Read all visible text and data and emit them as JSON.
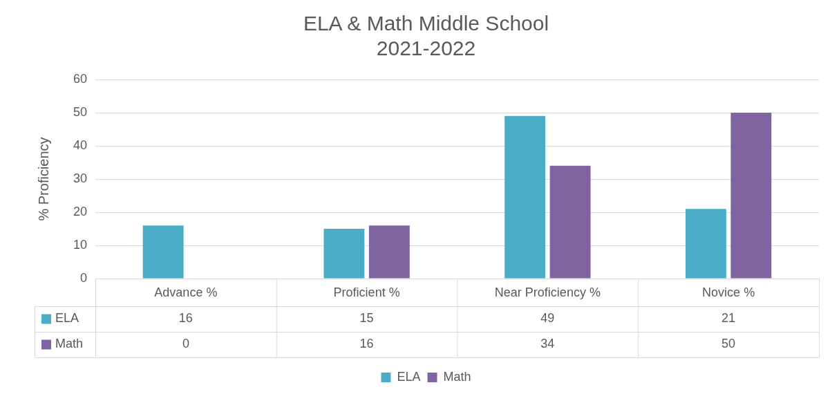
{
  "chart_data": {
    "type": "bar",
    "title": "ELA & Math Middle School\n2021-2022",
    "ylabel": "% Proficiency",
    "categories": [
      "Advance %",
      "Proficient %",
      "Near Proficiency %",
      "Novice %"
    ],
    "series": [
      {
        "name": "ELA",
        "color": "#4bacc6",
        "values": [
          16,
          15,
          49,
          21
        ]
      },
      {
        "name": "Math",
        "color": "#8064a2",
        "values": [
          0,
          16,
          34,
          50
        ]
      }
    ],
    "ylim": [
      0,
      60
    ],
    "yticks": [
      0,
      10,
      20,
      30,
      40,
      50,
      60
    ],
    "grid": "y",
    "legend": "bottom",
    "data_labels": true
  }
}
